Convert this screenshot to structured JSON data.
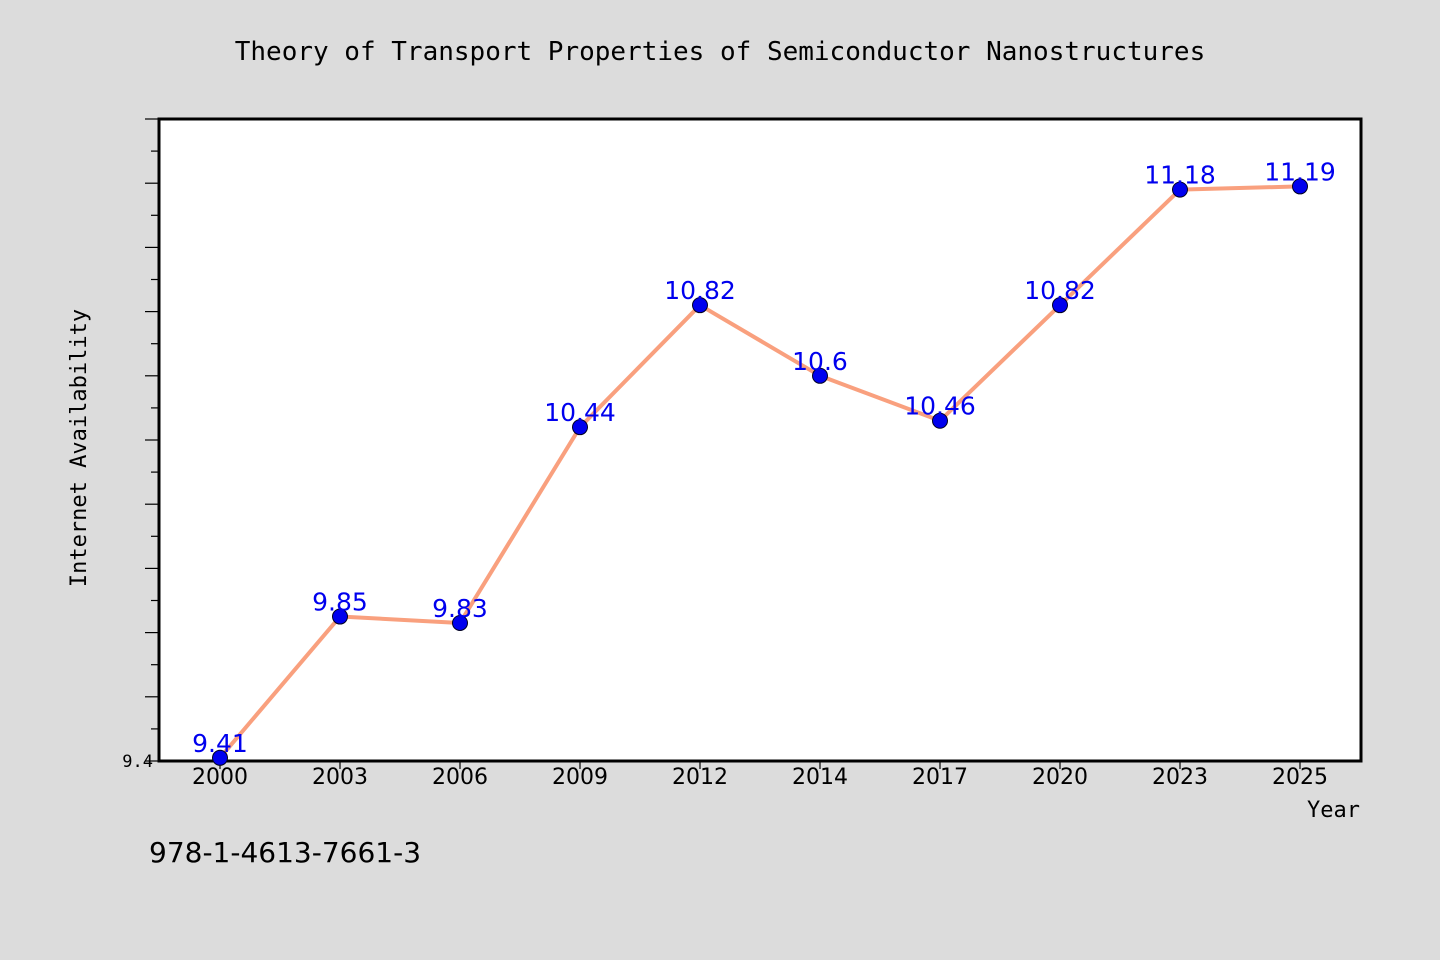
{
  "colors": {
    "background": "#dcdcdc",
    "plot_background": "#ffffff",
    "line": "#f9a07e",
    "marker": "#0000ee",
    "data_label": "#0000ee"
  },
  "footer": {
    "isbn": "978-1-4613-7661-3"
  },
  "chart_data": {
    "type": "line",
    "title": "Theory of Transport Properties of Semiconductor Nanostructures",
    "xlabel": "Year",
    "ylabel": "Internet Availability",
    "categories": [
      "2000",
      "2003",
      "2006",
      "2009",
      "2012",
      "2014",
      "2017",
      "2020",
      "2023",
      "2025"
    ],
    "series": [
      {
        "values": [
          9.41,
          9.85,
          9.83,
          10.44,
          10.82,
          10.6,
          10.46,
          10.82,
          11.18,
          11.19
        ]
      }
    ],
    "data_labels": [
      "9.41",
      "9.85",
      "9.83",
      "10.44",
      "10.82",
      "10.6",
      "10.46",
      "10.82",
      "11.18",
      "11.19"
    ],
    "y_tick_labels": [
      "9.4"
    ],
    "ylim": [
      9.4,
      11.4
    ],
    "grid": false,
    "legend": "none"
  }
}
